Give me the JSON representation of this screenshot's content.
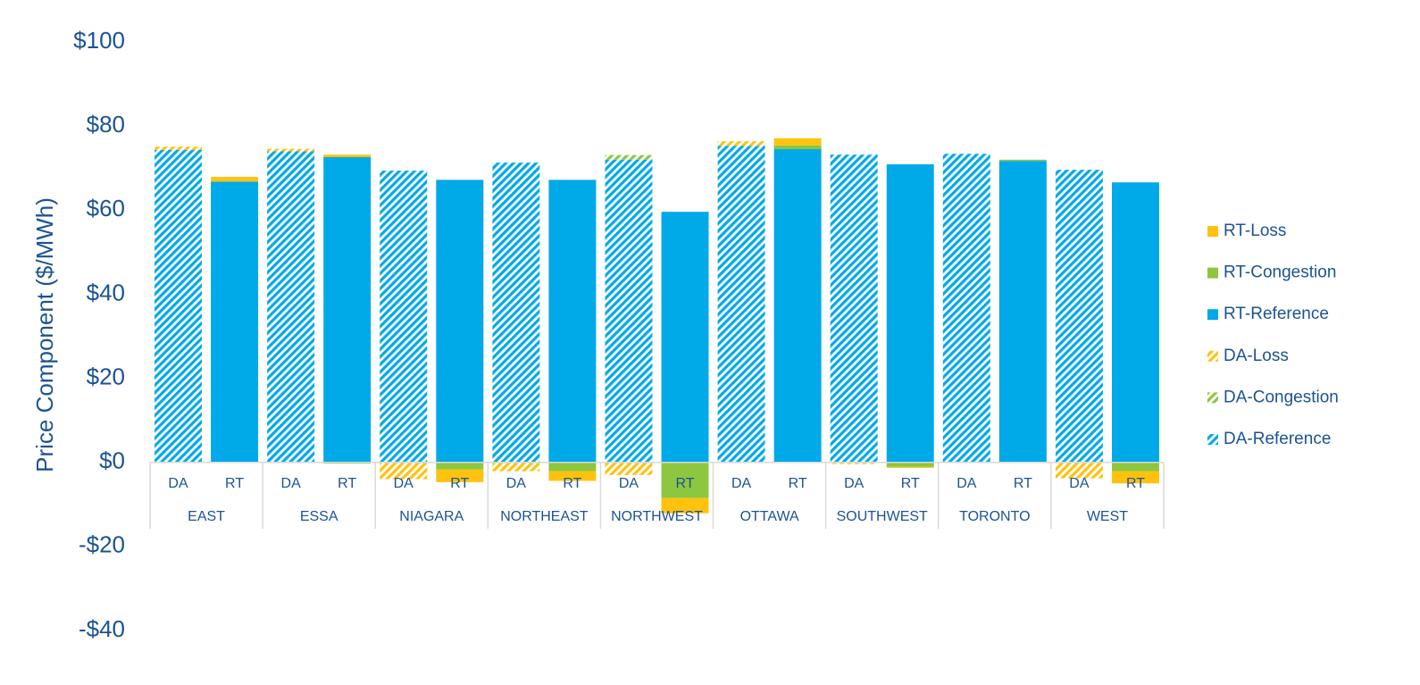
{
  "chart_data": {
    "type": "stacked_bar",
    "y_label": "Price Component ($/MWh)",
    "ylim": [
      -40,
      100
    ],
    "yticks": [
      {
        "value": -40,
        "label": "-$40"
      },
      {
        "value": -20,
        "label": "-$20"
      },
      {
        "value": 0,
        "label": "$0"
      },
      {
        "value": 20,
        "label": "$20"
      },
      {
        "value": 40,
        "label": "$40"
      },
      {
        "value": 60,
        "label": "$60"
      },
      {
        "value": 80,
        "label": "$80"
      },
      {
        "value": 100,
        "label": "$100"
      }
    ],
    "groups": [
      "EAST",
      "ESSA",
      "NIAGARA",
      "NORTHEAST",
      "NORTHWEST",
      "OTTAWA",
      "SOUTHWEST",
      "TORONTO",
      "WEST"
    ],
    "categories": [
      "DA",
      "RT",
      "DA",
      "RT",
      "DA",
      "RT",
      "DA",
      "RT",
      "DA",
      "RT",
      "DA",
      "RT",
      "DA",
      "RT",
      "DA",
      "RT",
      "DA",
      "RT"
    ],
    "series": [
      {
        "name": "DA-Reference",
        "color": "#00a9e8",
        "pattern": "hatch",
        "values": [
          74.3,
          null,
          74.0,
          null,
          69.4,
          null,
          71.3,
          null,
          72.0,
          null,
          75.3,
          null,
          73.2,
          null,
          73.4,
          null,
          69.6,
          null
        ]
      },
      {
        "name": "DA-Congestion",
        "color": "#8dc63f",
        "pattern": "hatch",
        "values": [
          0,
          null,
          0,
          null,
          0,
          null,
          0,
          null,
          1.1,
          null,
          0,
          null,
          0,
          null,
          0,
          null,
          0,
          null
        ]
      },
      {
        "name": "DA-Loss",
        "color": "#ffc20e",
        "pattern": "hatch",
        "values": [
          0.8,
          null,
          0.6,
          null,
          -4.0,
          null,
          -2.1,
          null,
          -3.0,
          null,
          1.1,
          null,
          -0.4,
          null,
          0,
          null,
          -3.8,
          null
        ]
      },
      {
        "name": "RT-Reference",
        "color": "#00a9e8",
        "pattern": "solid",
        "values": [
          null,
          66.8,
          null,
          72.6,
          null,
          67.2,
          null,
          67.2,
          null,
          59.6,
          null,
          74.5,
          null,
          70.9,
          null,
          71.7,
          null,
          66.6
        ]
      },
      {
        "name": "RT-Congestion",
        "color": "#8dc63f",
        "pattern": "solid",
        "values": [
          null,
          0,
          null,
          -0.3,
          null,
          -1.7,
          null,
          -2.1,
          null,
          -8.5,
          null,
          0.9,
          null,
          -1.1,
          null,
          0.3,
          null,
          -2.1
        ]
      },
      {
        "name": "RT-Loss",
        "color": "#ffc20e",
        "pattern": "solid",
        "values": [
          null,
          1.1,
          null,
          0.6,
          null,
          -3.0,
          null,
          -2.3,
          null,
          -3.6,
          null,
          1.7,
          null,
          -0.2,
          null,
          0,
          null,
          -2.9
        ]
      }
    ],
    "legend": "right"
  }
}
